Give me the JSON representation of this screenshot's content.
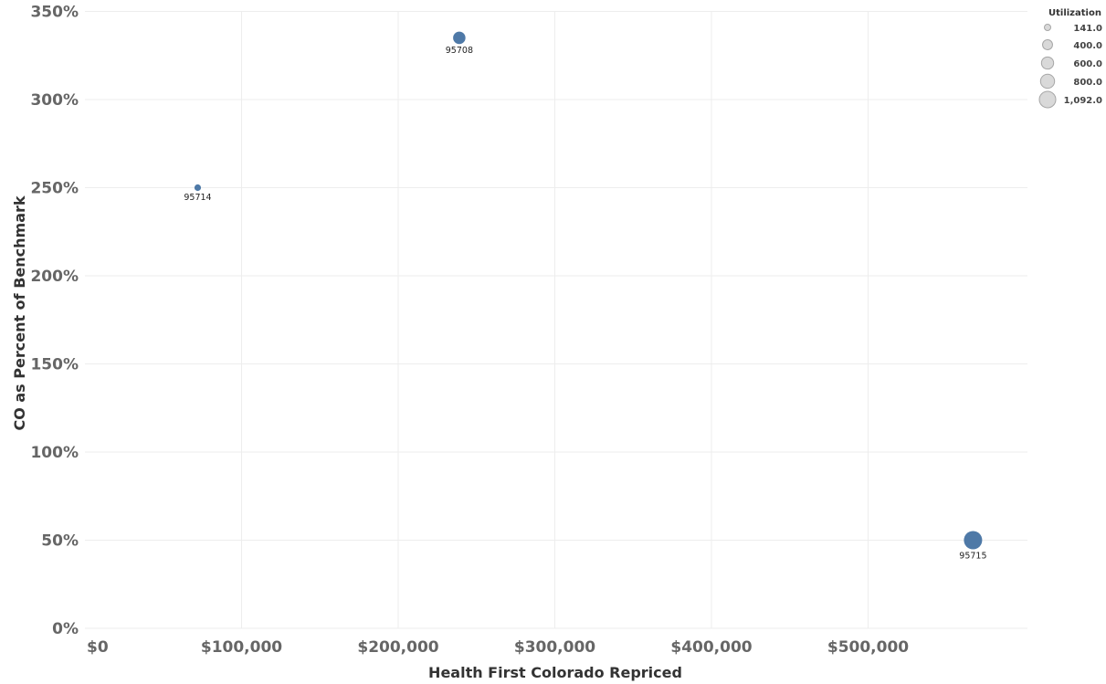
{
  "chart_data": {
    "type": "scatter",
    "title": "",
    "xlabel": "Health First Colorado Repriced",
    "ylabel": "CO as Percent of Benchmark",
    "xlim": [
      0,
      600000
    ],
    "ylim": [
      0,
      350
    ],
    "x_ticks": [
      0,
      100000,
      200000,
      300000,
      400000,
      500000
    ],
    "x_tick_labels": [
      "$0",
      "$100,000",
      "$200,000",
      "$300,000",
      "$400,000",
      "$500,000"
    ],
    "y_ticks": [
      0,
      50,
      100,
      150,
      200,
      250,
      300,
      350
    ],
    "y_tick_labels": [
      "0%",
      "50%",
      "100%",
      "150%",
      "200%",
      "250%",
      "300%",
      "350%"
    ],
    "grid": true,
    "size_legend": {
      "title": "Utilization",
      "placement": "top-right",
      "entries": [
        {
          "value": 141.0,
          "label": "141.0"
        },
        {
          "value": 400.0,
          "label": "400.0"
        },
        {
          "value": 600.0,
          "label": "600.0"
        },
        {
          "value": 800.0,
          "label": "800.0"
        },
        {
          "value": 1092.0,
          "label": "1,092.0"
        }
      ]
    },
    "marker_color": "#4e79a7",
    "legend_marker_fill": "#d9d9d9",
    "legend_marker_stroke": "#a6a6a6",
    "points": [
      {
        "label": "95714",
        "x": 72000,
        "y": 250,
        "size": 141
      },
      {
        "label": "95708",
        "x": 239000,
        "y": 335,
        "size": 500
      },
      {
        "label": "95715",
        "x": 567000,
        "y": 50,
        "size": 1092
      }
    ]
  }
}
